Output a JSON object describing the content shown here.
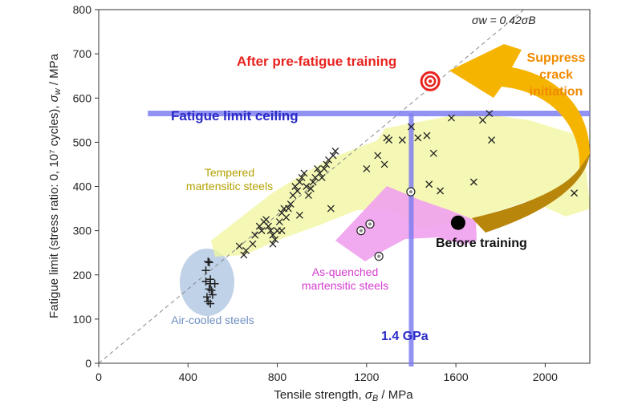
{
  "chart_data": {
    "type": "scatter",
    "xlabel": "Tensile strength, σB / MPa",
    "ylabel": "Fatigue limit (stress ratio: 0, 10⁷ cycles), σw / MPa",
    "xlim": [
      0,
      2200
    ],
    "ylim": [
      0,
      800
    ],
    "xticks": [
      "0",
      "400",
      "800",
      "1200",
      "1600",
      "2000"
    ],
    "xtick_values": [
      0,
      400,
      800,
      1200,
      1600,
      2000
    ],
    "yticks": [
      "0",
      "100",
      "200",
      "300",
      "400",
      "500",
      "600",
      "700",
      "800"
    ],
    "ytick_values": [
      0,
      100,
      200,
      300,
      400,
      500,
      600,
      700,
      800
    ],
    "grid": false,
    "reference_line": {
      "label": "σw = 0.42σB",
      "slope": 0.42
    },
    "ceiling": {
      "label": "Fatigue limit ceiling",
      "y": 565,
      "x_range": [
        220,
        2200
      ],
      "color": "#7f7ff0"
    },
    "vline": {
      "label": "1.4 GPa",
      "x": 1400,
      "color": "#7f7ff0"
    },
    "region_labels": {
      "tempered": "Tempered\nmartensitic steels",
      "quenched": "As-quenched\nmartensitic steels",
      "aircooled": "Air-cooled steels"
    },
    "annotations": {
      "after": "After pre-fatigue training",
      "before": "Before training",
      "suppress": "Suppress\ncrack\ninitiation"
    },
    "colors": {
      "tempered": "#f2f59c",
      "quenched": "#f0a0ee",
      "aircooled": "#b9cde6",
      "accent_red": "#e8231f",
      "arrow_gold": "#f5b400",
      "arrow_dark": "#b8860b",
      "label_tempered": "#b3a100",
      "label_quenched": "#d43ccf",
      "label_aircooled": "#6f8fbf",
      "ceiling_label": "#2b2bc8"
    },
    "series": [
      {
        "name": "Air-cooled steels",
        "marker": "plus",
        "points": [
          [
            490,
            230
          ],
          [
            495,
            228
          ],
          [
            480,
            210
          ],
          [
            500,
            190
          ],
          [
            480,
            185
          ],
          [
            500,
            180
          ],
          [
            520,
            180
          ],
          [
            495,
            168
          ],
          [
            505,
            165
          ],
          [
            485,
            150
          ],
          [
            510,
            155
          ],
          [
            490,
            140
          ],
          [
            500,
            135
          ]
        ]
      },
      {
        "name": "Tempered martensitic steels",
        "marker": "x",
        "points": [
          [
            630,
            265
          ],
          [
            650,
            245
          ],
          [
            660,
            255
          ],
          [
            690,
            270
          ],
          [
            700,
            290
          ],
          [
            720,
            310
          ],
          [
            730,
            300
          ],
          [
            740,
            320
          ],
          [
            750,
            325
          ],
          [
            760,
            310
          ],
          [
            770,
            300
          ],
          [
            780,
            290
          ],
          [
            790,
            280
          ],
          [
            800,
            300
          ],
          [
            810,
            320
          ],
          [
            820,
            340
          ],
          [
            830,
            350
          ],
          [
            840,
            330
          ],
          [
            850,
            350
          ],
          [
            860,
            360
          ],
          [
            870,
            380
          ],
          [
            880,
            400
          ],
          [
            890,
            390
          ],
          [
            900,
            410
          ],
          [
            910,
            420
          ],
          [
            920,
            430
          ],
          [
            930,
            400
          ],
          [
            940,
            380
          ],
          [
            950,
            395
          ],
          [
            960,
            410
          ],
          [
            970,
            420
          ],
          [
            980,
            440
          ],
          [
            990,
            430
          ],
          [
            1000,
            420
          ],
          [
            1010,
            440
          ],
          [
            1020,
            450
          ],
          [
            1030,
            460
          ],
          [
            1050,
            470
          ],
          [
            1060,
            480
          ],
          [
            820,
            300
          ],
          [
            780,
            270
          ],
          [
            900,
            335
          ],
          [
            1040,
            350
          ],
          [
            1200,
            440
          ],
          [
            1250,
            470
          ],
          [
            1280,
            450
          ],
          [
            1290,
            510
          ],
          [
            1300,
            505
          ],
          [
            1360,
            505
          ],
          [
            1400,
            535
          ],
          [
            1430,
            510
          ],
          [
            1470,
            515
          ],
          [
            1500,
            475
          ],
          [
            1580,
            555
          ],
          [
            1720,
            550
          ],
          [
            1750,
            565
          ],
          [
            1760,
            505
          ],
          [
            1480,
            405
          ],
          [
            1530,
            390
          ],
          [
            1680,
            410
          ],
          [
            2130,
            385
          ]
        ]
      },
      {
        "name": "As-quenched martensitic steels",
        "marker": "circle",
        "points": [
          [
            1175,
            300
          ],
          [
            1215,
            315
          ],
          [
            1255,
            242
          ],
          [
            1398,
            388
          ]
        ]
      }
    ],
    "after_point": [
      1485,
      638
    ],
    "before_point": [
      1610,
      318
    ]
  }
}
